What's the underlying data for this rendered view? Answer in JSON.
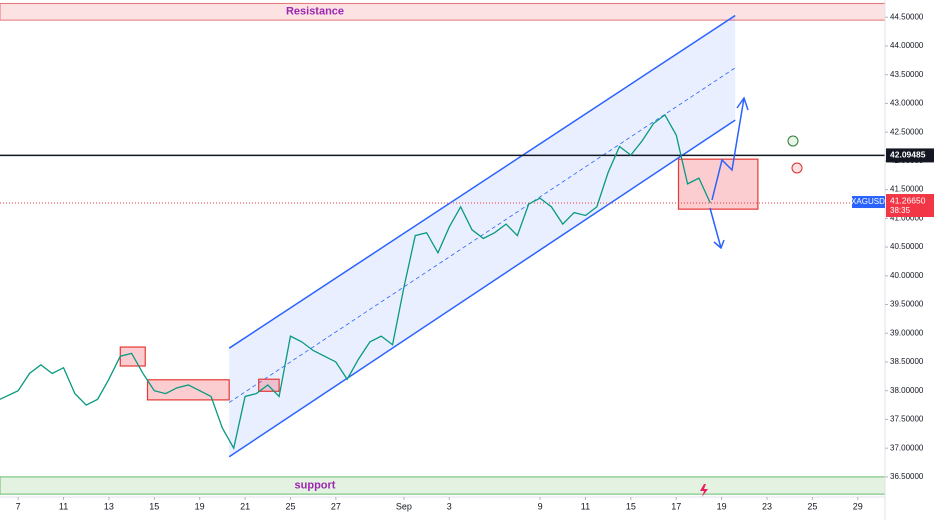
{
  "chart_data": {
    "type": "line",
    "x": [
      -0.8,
      0,
      0.5,
      1,
      1.5,
      2,
      2.5,
      3,
      3.5,
      4,
      4.5,
      5,
      5.5,
      6,
      6.5,
      7,
      7.5,
      8,
      8.5,
      9,
      9.5,
      10,
      10.5,
      11,
      11.5,
      12,
      12.5,
      13,
      13.5,
      14,
      14.5,
      15,
      15.5,
      16,
      16.5,
      17,
      17.5,
      18,
      18.5,
      19,
      19.5,
      20,
      20.5,
      21,
      21.5,
      22,
      22.5,
      23,
      23.5,
      24,
      24.5,
      25,
      25.5,
      26,
      26.5,
      27,
      27.5,
      28,
      28.5,
      29,
      29.5,
      30,
      30.5
    ],
    "series": [
      {
        "name": "XAGUSD",
        "color": "#089981",
        "values": [
          37.85,
          38.0,
          38.3,
          38.45,
          38.3,
          38.4,
          37.95,
          37.75,
          37.85,
          38.2,
          38.6,
          38.65,
          38.3,
          38.0,
          37.95,
          38.05,
          38.1,
          38.0,
          37.9,
          37.35,
          37.0,
          37.9,
          37.95,
          38.1,
          37.9,
          38.95,
          38.85,
          38.7,
          38.6,
          38.5,
          38.2,
          38.55,
          38.85,
          38.95,
          38.8,
          39.8,
          40.7,
          40.75,
          40.4,
          40.85,
          41.2,
          40.8,
          40.65,
          40.75,
          40.9,
          40.7,
          41.25,
          41.35,
          41.2,
          40.9,
          41.1,
          41.05,
          41.2,
          41.8,
          42.25,
          42.1,
          42.35,
          42.65,
          42.8,
          42.45,
          41.6,
          41.7,
          41.2665
        ]
      }
    ],
    "xlim": [
      -0.8,
      38.2
    ],
    "xticks": [
      {
        "value": 0,
        "label": "7"
      },
      {
        "value": 2,
        "label": "11"
      },
      {
        "value": 4,
        "label": "13"
      },
      {
        "value": 6,
        "label": "15"
      },
      {
        "value": 8,
        "label": "19"
      },
      {
        "value": 10,
        "label": "21"
      },
      {
        "value": 12,
        "label": "25"
      },
      {
        "value": 14,
        "label": "27"
      },
      {
        "value": 17,
        "label": "Sep"
      },
      {
        "value": 19,
        "label": "3"
      },
      {
        "value": 23,
        "label": "9"
      },
      {
        "value": 25,
        "label": "11"
      },
      {
        "value": 27,
        "label": "15"
      },
      {
        "value": 29,
        "label": "17"
      },
      {
        "value": 31,
        "label": "19"
      },
      {
        "value": 33,
        "label": "23"
      },
      {
        "value": 35,
        "label": "25"
      },
      {
        "value": 37,
        "label": "29"
      }
    ],
    "ylim": [
      36.15,
      44.8
    ],
    "yticks": [
      {
        "value": 36.5,
        "label": "36.50000"
      },
      {
        "value": 37,
        "label": "37.00000"
      },
      {
        "value": 37.5,
        "label": "37.50000"
      },
      {
        "value": 38,
        "label": "38.00000"
      },
      {
        "value": 38.5,
        "label": "38.50000"
      },
      {
        "value": 39,
        "label": "39.00000"
      },
      {
        "value": 39.5,
        "label": "39.50000"
      },
      {
        "value": 40,
        "label": "40.00000"
      },
      {
        "value": 40.5,
        "label": "40.50000"
      },
      {
        "value": 41,
        "label": "41.00000"
      },
      {
        "value": 41.5,
        "label": "41.50000"
      },
      {
        "value": 42,
        "label": "42.00000"
      },
      {
        "value": 42.5,
        "label": "42.50000"
      },
      {
        "value": 43,
        "label": "43.00000"
      },
      {
        "value": 43.5,
        "label": "43.50000"
      },
      {
        "value": 44,
        "label": "44.00000"
      },
      {
        "value": 44.5,
        "label": "44.50000"
      }
    ],
    "resistance": {
      "label": "Resistance",
      "range": [
        44.45,
        44.74
      ]
    },
    "support": {
      "label": "support",
      "range": [
        36.2,
        36.5
      ]
    },
    "level": {
      "value": 42.09485,
      "label": "42.09485"
    },
    "last_price": {
      "symbol": "XAGUSD",
      "value": 41.2665,
      "label": "41.26650",
      "countdown": "38:35"
    },
    "channel": {
      "upper": [
        [
          9.3,
          38.74
        ],
        [
          31.6,
          44.53
        ]
      ],
      "lower": [
        [
          9.3,
          36.85
        ],
        [
          31.6,
          42.71
        ]
      ]
    },
    "boxes": [
      [
        4.5,
        5.6,
        38.43,
        38.76
      ],
      [
        5.7,
        9.3,
        37.84,
        38.19
      ],
      [
        10.6,
        11.5,
        37.99,
        38.2
      ],
      [
        29.1,
        32.6,
        41.16,
        42.03
      ]
    ]
  }
}
